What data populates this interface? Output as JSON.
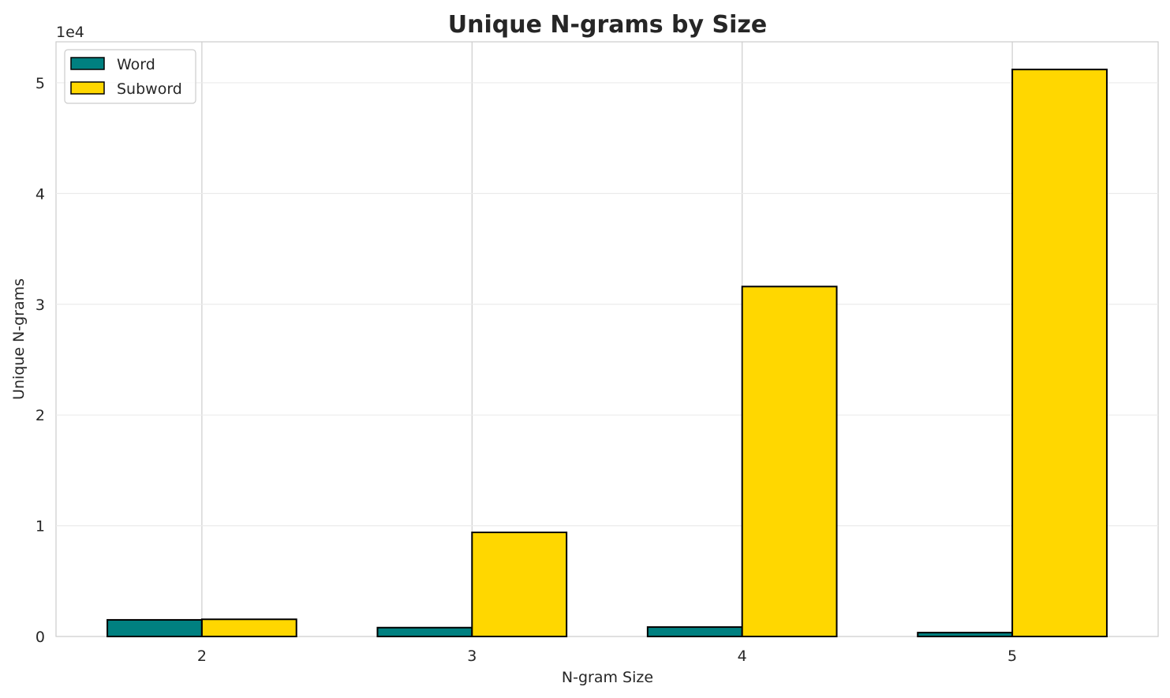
{
  "chart_data": {
    "type": "bar",
    "title": "Unique N-grams by Size",
    "xlabel": "N-gram Size",
    "ylabel": "Unique N-grams",
    "offset_label": "1e4",
    "categories": [
      "2",
      "3",
      "4",
      "5"
    ],
    "y_ticks": [
      0,
      10000,
      20000,
      30000,
      40000,
      50000
    ],
    "y_tick_labels": [
      "0",
      "1",
      "2",
      "3",
      "4",
      "5"
    ],
    "ylim": [
      0,
      53700
    ],
    "grid": true,
    "legend_position": "top-left",
    "series": [
      {
        "name": "Word",
        "color": "#008080",
        "values": [
          1500,
          800,
          850,
          350
        ]
      },
      {
        "name": "Subword",
        "color": "#ffd700",
        "values": [
          1550,
          9400,
          31600,
          51200
        ]
      }
    ]
  }
}
